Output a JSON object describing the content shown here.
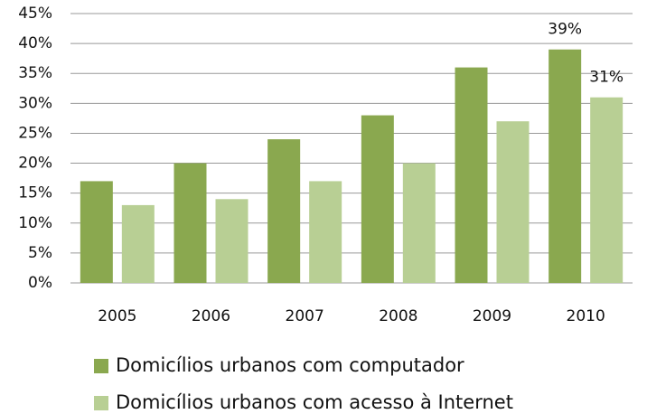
{
  "chart_data": {
    "type": "bar",
    "categories": [
      "2005",
      "2006",
      "2007",
      "2008",
      "2009",
      "2010"
    ],
    "series": [
      {
        "name": "Domicílios urbanos com computador",
        "color": "#8aa84f",
        "values": [
          17,
          20,
          24,
          28,
          36,
          39
        ],
        "value_labels": [
          null,
          null,
          null,
          null,
          null,
          "39%"
        ]
      },
      {
        "name": "Domicílios urbanos com acesso à Internet",
        "color": "#b8cf94",
        "values": [
          13,
          14,
          17,
          20,
          27,
          31
        ],
        "value_labels": [
          null,
          null,
          null,
          null,
          null,
          "31%"
        ]
      }
    ],
    "ylim": [
      0,
      45
    ],
    "yticks": [
      {
        "value": 0,
        "label": "0%"
      },
      {
        "value": 5,
        "label": "5%"
      },
      {
        "value": 10,
        "label": "10%"
      },
      {
        "value": 15,
        "label": "15%"
      },
      {
        "value": 20,
        "label": "20%"
      },
      {
        "value": 25,
        "label": "25%"
      },
      {
        "value": 30,
        "label": "30%"
      },
      {
        "value": 35,
        "label": "35%"
      },
      {
        "value": 40,
        "label": "40%"
      },
      {
        "value": 45,
        "label": "45%"
      }
    ],
    "grid": true
  }
}
